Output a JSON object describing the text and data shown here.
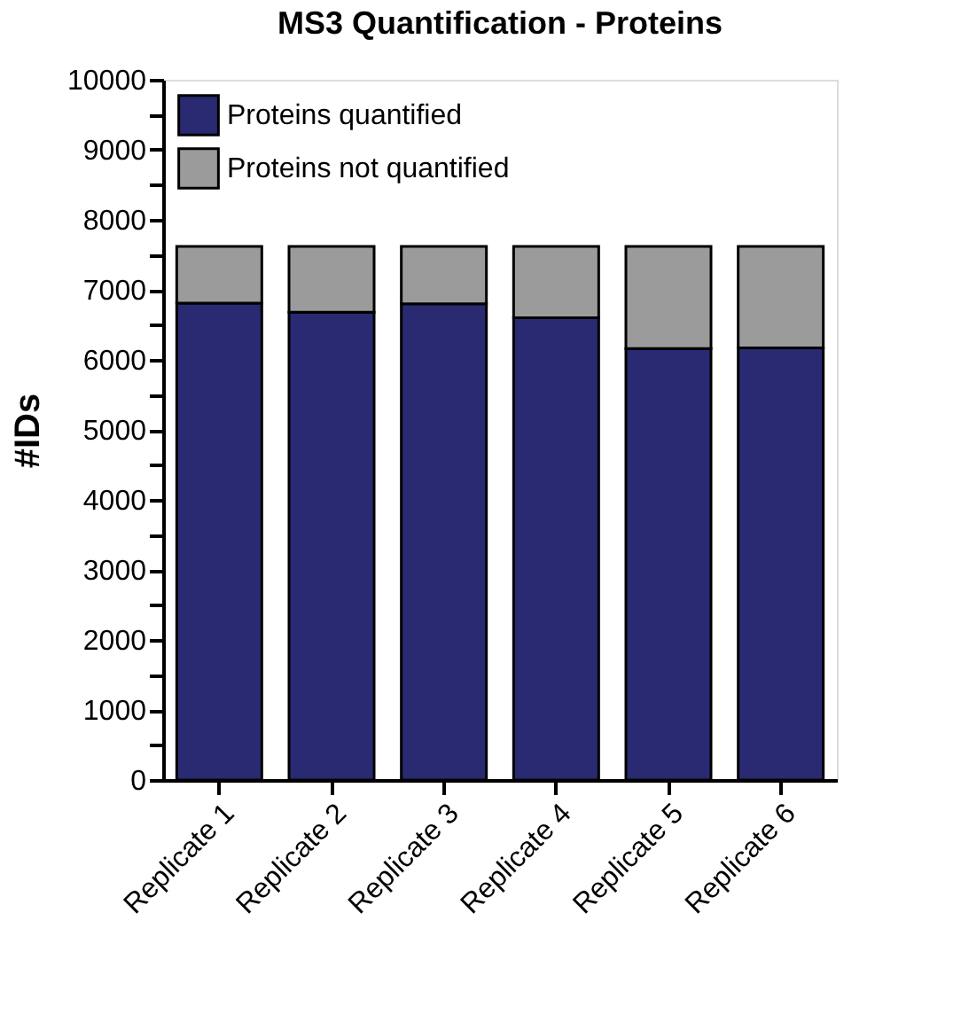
{
  "chart_data": {
    "type": "bar",
    "title": "MS3 Quantification - Proteins",
    "ylabel": "#IDs",
    "categories": [
      "Replicate 1",
      "Replicate 2",
      "Replicate 3",
      "Replicate 4",
      "Replicate 5",
      "Replicate 6"
    ],
    "stacked": true,
    "series": [
      {
        "name": "Proteins quantified",
        "color": "#2a2a72",
        "values": [
          6810,
          6680,
          6800,
          6600,
          6160,
          6170
        ]
      },
      {
        "name": "Proteins not quantified",
        "color": "#9b9b9b",
        "values": [
          810,
          940,
          820,
          1020,
          1460,
          1450
        ]
      }
    ],
    "ylim": [
      0,
      10000
    ],
    "yticks": [
      0,
      {
        "value": 500,
        "label": null
      },
      1000,
      {
        "value": 1500,
        "label": null
      },
      2000,
      {
        "value": 2500,
        "label": null
      },
      3000,
      {
        "value": 3500,
        "label": null
      },
      4000,
      {
        "value": 4500,
        "label": null
      },
      5000,
      {
        "value": 5500,
        "label": null
      },
      6000,
      {
        "value": 6500,
        "label": null
      },
      7000,
      {
        "value": 7500,
        "label": null
      },
      8000,
      {
        "value": 8500,
        "label": null
      },
      9000,
      {
        "value": 9500,
        "label": null
      },
      10000
    ],
    "grid": false,
    "legend": "top left"
  }
}
